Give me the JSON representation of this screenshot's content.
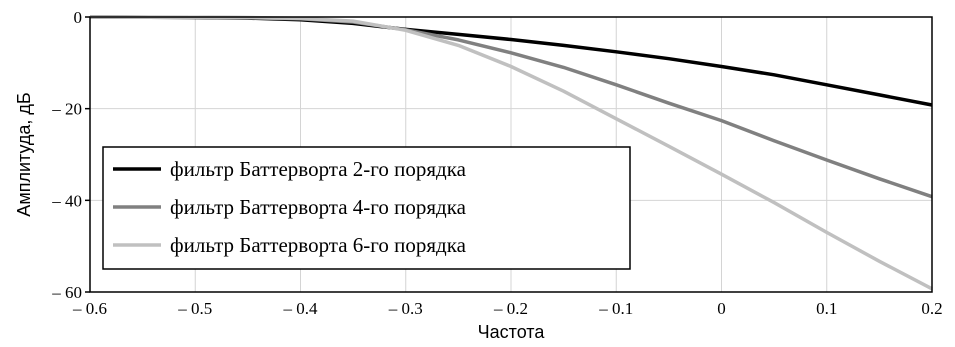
{
  "chart_data": {
    "type": "line",
    "xlabel": "Частота",
    "ylabel": "Амплитуда, дБ",
    "xlim": [
      -0.6,
      0.2
    ],
    "ylim": [
      -60,
      0
    ],
    "xticks": [
      -0.6,
      -0.5,
      -0.4,
      -0.3,
      -0.2,
      -0.1,
      0,
      0.1,
      0.2
    ],
    "xtick_labels": [
      "– 0.6",
      "– 0.5",
      "– 0.4",
      "– 0.3",
      "– 0.2",
      "– 0.1",
      "0",
      "0.1",
      "0.2"
    ],
    "yticks": [
      0,
      -20,
      -40,
      -60
    ],
    "ytick_labels": [
      "0",
      "– 20",
      "– 40",
      "– 60"
    ],
    "grid": true,
    "legend_position": "bottom-left",
    "series": [
      {
        "name": "фильтр Баттерворта 2-го порядка",
        "color": "#000000",
        "x": [
          -0.6,
          -0.5,
          -0.45,
          -0.4,
          -0.35,
          -0.3,
          -0.25,
          -0.2,
          -0.15,
          -0.1,
          -0.05,
          0,
          0.05,
          0.1,
          0.15,
          0.2
        ],
        "y": [
          0,
          -0.1,
          -0.25,
          -0.6,
          -1.4,
          -2.7,
          -3.8,
          -4.9,
          -6.2,
          -7.6,
          -9.1,
          -10.8,
          -12.6,
          -14.8,
          -17.0,
          -19.2
        ]
      },
      {
        "name": "фильтр Баттерворта 4-го порядка",
        "color": "#808080",
        "x": [
          -0.6,
          -0.5,
          -0.45,
          -0.4,
          -0.35,
          -0.3,
          -0.25,
          -0.2,
          -0.15,
          -0.1,
          -0.05,
          0,
          0.05,
          0.1,
          0.15,
          0.2
        ],
        "y": [
          0,
          -0.05,
          -0.15,
          -0.4,
          -1.1,
          -2.8,
          -5.0,
          -7.8,
          -11.0,
          -14.8,
          -18.8,
          -22.6,
          -27.0,
          -31.2,
          -35.3,
          -39.2
        ]
      },
      {
        "name": "фильтр Баттерворта 6-го порядка",
        "color": "#c0c0c0",
        "x": [
          -0.6,
          -0.5,
          -0.45,
          -0.4,
          -0.35,
          -0.3,
          -0.25,
          -0.2,
          -0.15,
          -0.1,
          -0.05,
          0,
          0.05,
          0.1,
          0.15,
          0.2
        ],
        "y": [
          0,
          -0.05,
          -0.1,
          -0.3,
          -0.9,
          -2.9,
          -6.2,
          -10.8,
          -16.2,
          -22.2,
          -28.2,
          -34.3,
          -40.5,
          -47.0,
          -53.3,
          -59.3
        ]
      }
    ]
  }
}
